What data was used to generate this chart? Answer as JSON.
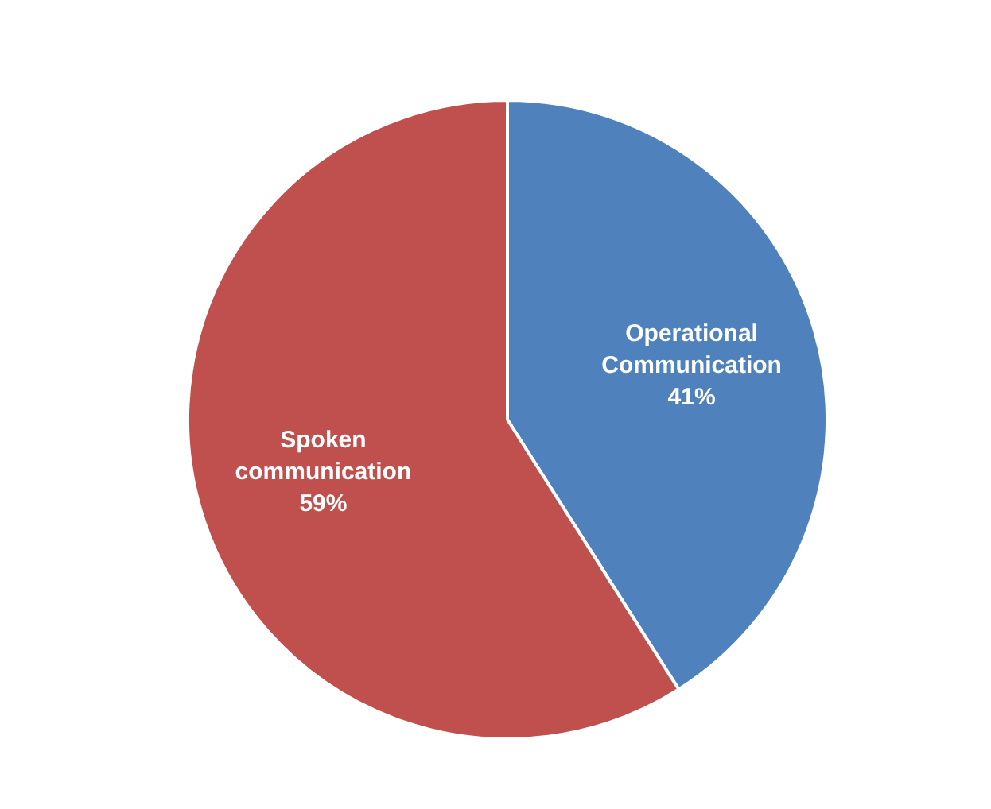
{
  "chart_data": {
    "type": "pie",
    "categories": [
      "Operational Communication",
      "Spoken communication"
    ],
    "values": [
      41,
      59
    ],
    "colors": [
      "#4f81bd",
      "#c0504d"
    ],
    "value_labels": [
      "41%",
      "59%"
    ]
  }
}
